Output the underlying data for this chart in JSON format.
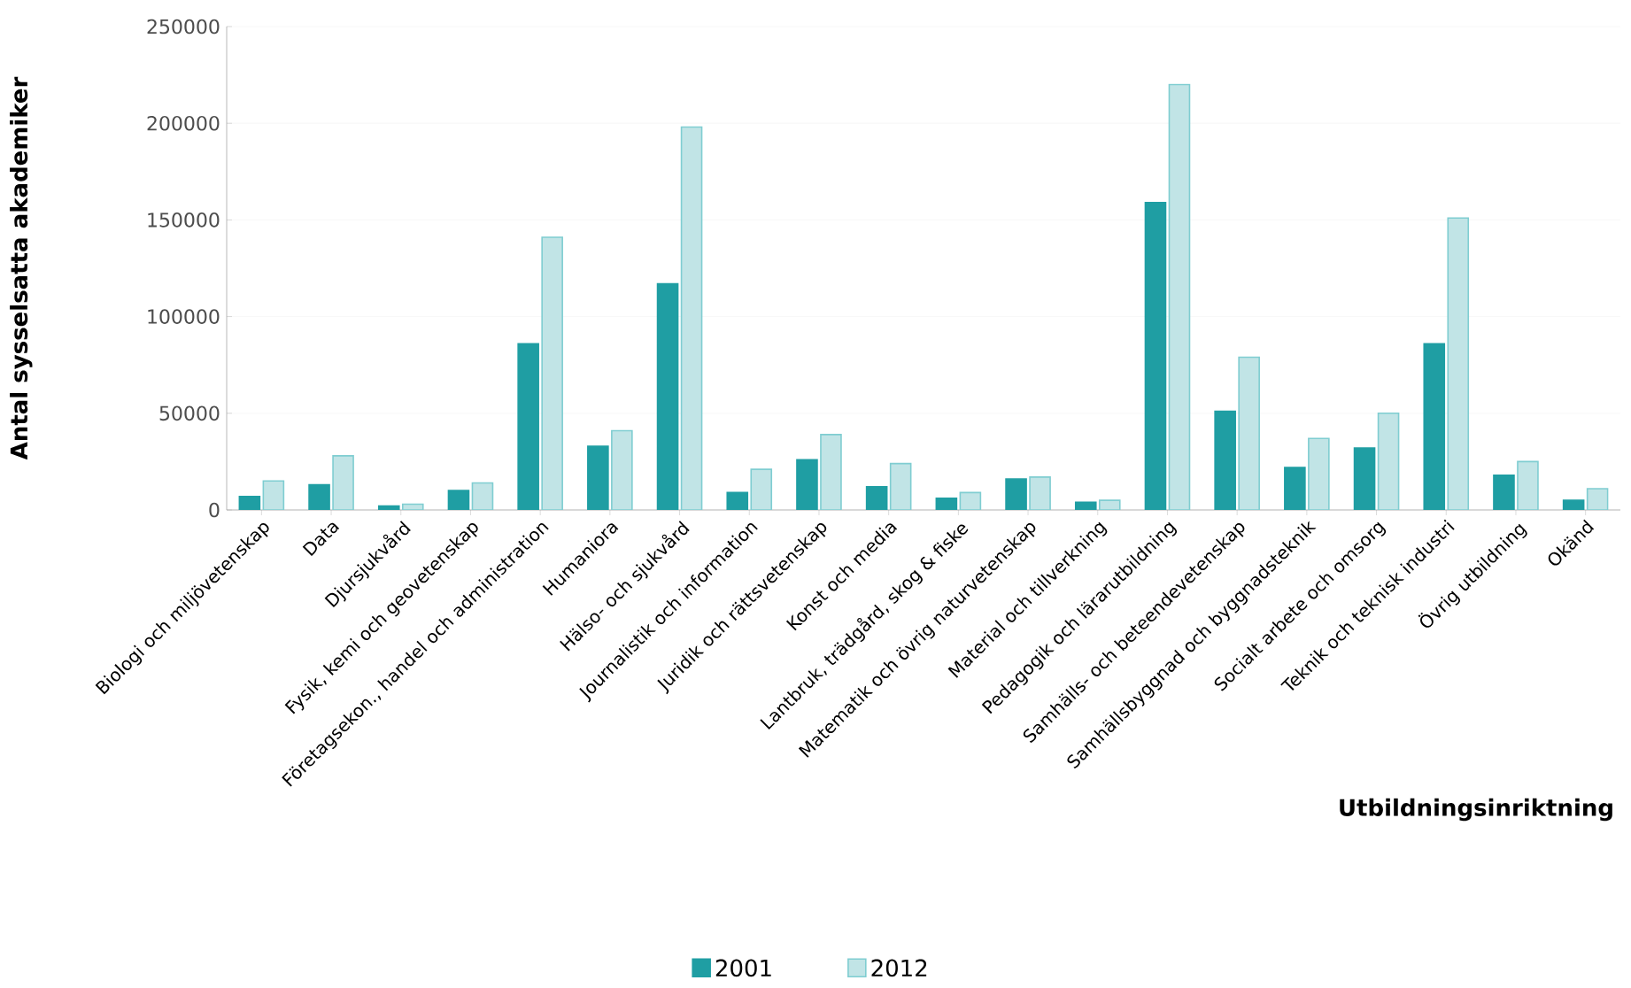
{
  "chart_data": {
    "type": "bar",
    "xlabel": "Utbildningsinriktning",
    "ylabel": "Antal sysselsatta akademiker",
    "categories": [
      "Biologi och miljövetenskap",
      "Data",
      "Djursjukvård",
      "Fysik, kemi och geovetenskap",
      "Företagsekon., handel och administration",
      "Humaniora",
      "Hälso- och sjukvård",
      "Journalistik och information",
      "Juridik och rättsvetenskap",
      "Konst och media",
      "Lantbruk, trädgård, skog & fiske",
      "Matematik och övrig naturvetenskap",
      "Material och tillverkning",
      "Pedagogik och lärarutbildning",
      "Samhälls- och beteendevetenskap",
      "Samhällsbyggnad och byggnadsteknik",
      "Socialt arbete och omsorg",
      "Teknik och teknisk industri",
      "Övrig utbildning",
      "Okänd"
    ],
    "series": [
      {
        "name": "2001",
        "color": "#1f9ea3",
        "values": [
          7000,
          13000,
          2000,
          10000,
          86000,
          33000,
          117000,
          9000,
          26000,
          12000,
          6000,
          16000,
          4000,
          159000,
          51000,
          22000,
          32000,
          86000,
          18000,
          5000
        ]
      },
      {
        "name": "2012",
        "color": "#c1e4e6",
        "values": [
          15000,
          28000,
          3000,
          14000,
          141000,
          41000,
          198000,
          21000,
          39000,
          24000,
          9000,
          17000,
          5000,
          220000,
          79000,
          37000,
          50000,
          151000,
          25000,
          11000
        ]
      }
    ],
    "ylim": [
      0,
      250000
    ],
    "yticks": [
      0,
      50000,
      100000,
      150000,
      200000,
      250000
    ],
    "grid": "y",
    "legend": "bottom"
  }
}
